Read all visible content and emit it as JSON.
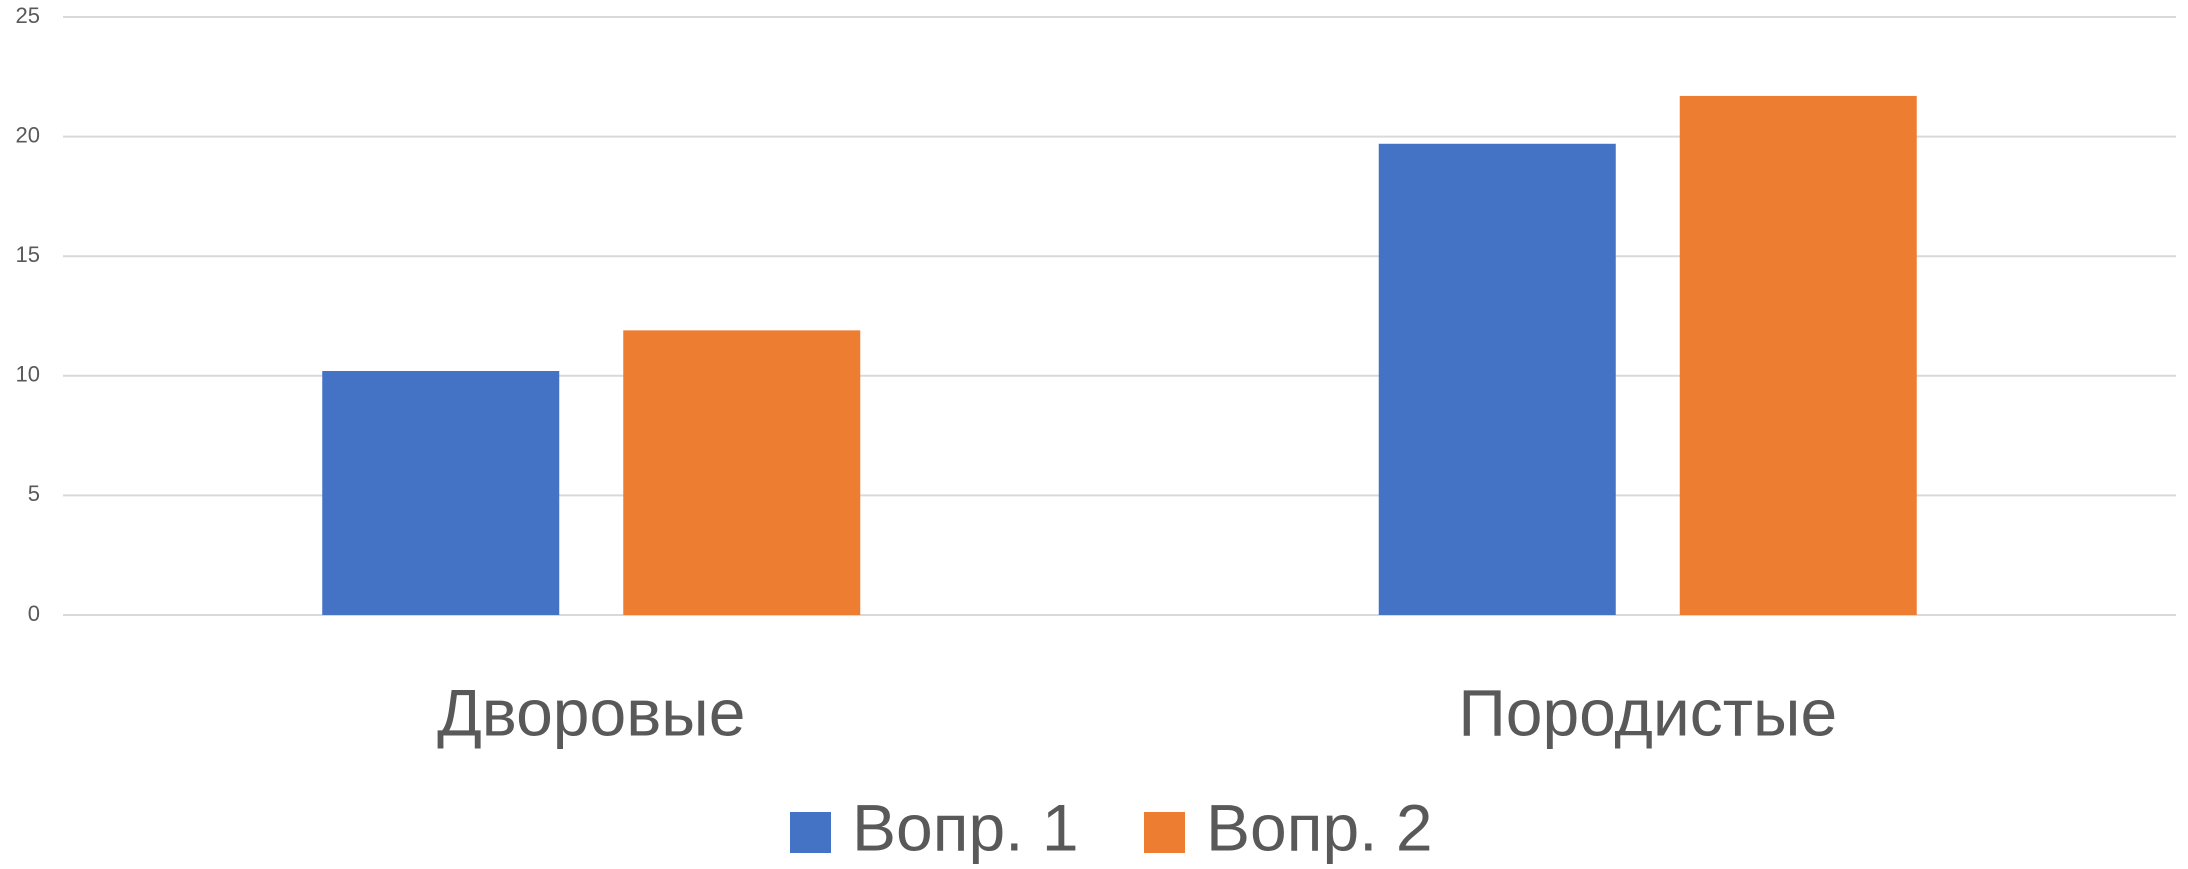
{
  "chart_data": {
    "type": "bar",
    "categories": [
      "Дворовые",
      "Породистые"
    ],
    "series": [
      {
        "name": "Вопр. 1",
        "color": "#4472c4",
        "values": [
          10.2,
          19.7
        ]
      },
      {
        "name": "Вопр. 2",
        "color": "#ed7d31",
        "values": [
          11.9,
          21.7
        ]
      }
    ],
    "ylim": [
      0,
      25
    ],
    "yticks": [
      0,
      5,
      10,
      15,
      20,
      25
    ],
    "grid": true,
    "legend": "bottom"
  }
}
